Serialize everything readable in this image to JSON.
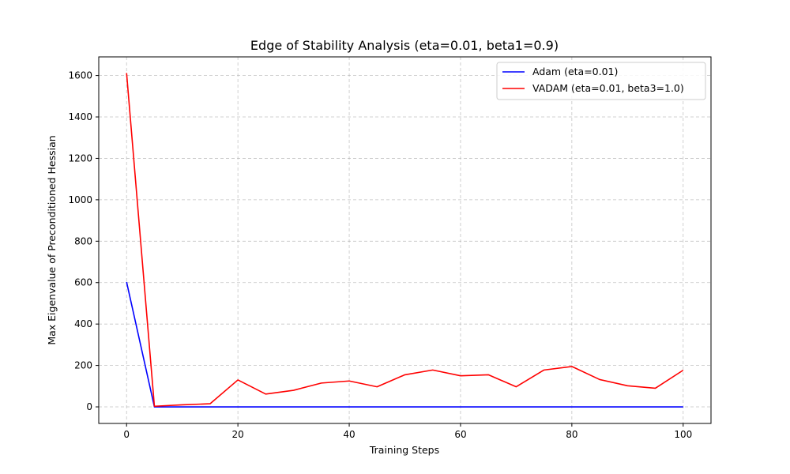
{
  "chart_data": {
    "type": "line",
    "title": "Edge of Stability Analysis (eta=0.01, beta1=0.9)",
    "xlabel": "Training Steps",
    "ylabel": "Max Eigenvalue of Preconditioned Hessian",
    "xlim": [
      -5,
      105
    ],
    "ylim": [
      -80,
      1690
    ],
    "xticks": [
      0,
      20,
      40,
      60,
      80,
      100
    ],
    "yticks": [
      0,
      200,
      400,
      600,
      800,
      1000,
      1200,
      1400,
      1600
    ],
    "grid": true,
    "legend_position": "top-right",
    "x": [
      0,
      5,
      10,
      15,
      20,
      25,
      30,
      35,
      40,
      45,
      50,
      55,
      60,
      65,
      70,
      75,
      80,
      85,
      90,
      95,
      100
    ],
    "series": [
      {
        "name": "Adam (eta=0.01)",
        "color": "#0000ff",
        "values": [
          603,
          0,
          0,
          0,
          0,
          0,
          0,
          0,
          0,
          0,
          0,
          0,
          0,
          0,
          0,
          0,
          0,
          0,
          0,
          0,
          0
        ]
      },
      {
        "name": "VADAM (eta=0.01, beta3=1.0)",
        "color": "#ff0000",
        "values": [
          1612,
          3,
          10,
          15,
          130,
          62,
          80,
          115,
          125,
          97,
          155,
          178,
          150,
          155,
          97,
          178,
          195,
          132,
          102,
          90,
          177
        ]
      }
    ]
  }
}
